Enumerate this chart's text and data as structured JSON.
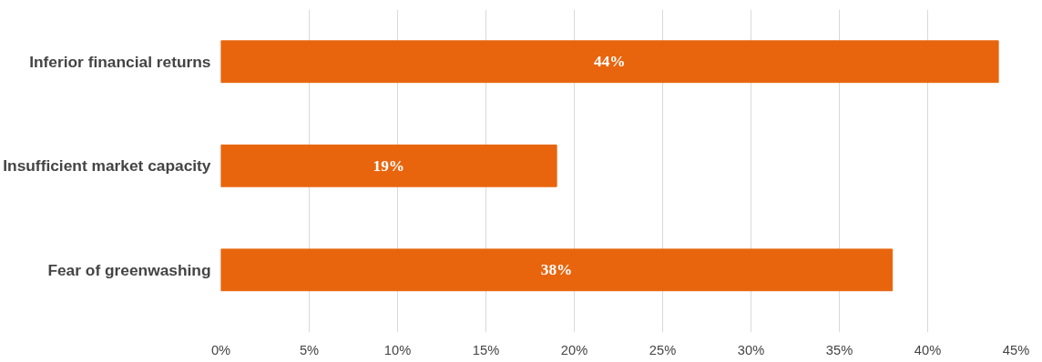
{
  "chart_data": {
    "type": "bar",
    "orientation": "horizontal",
    "categories": [
      "Inferior financial returns",
      "Insufficient market capacity",
      "Fear of greenwashing"
    ],
    "values": [
      44,
      19,
      38
    ],
    "color": "#e8650e",
    "value_labels": [
      "44%",
      "19%",
      "38%"
    ],
    "xlim": [
      0,
      45
    ],
    "xticks": [
      {
        "value": 0,
        "label": "0%"
      },
      {
        "value": 5,
        "label": "5%"
      },
      {
        "value": 10,
        "label": "10%"
      },
      {
        "value": 15,
        "label": "15%"
      },
      {
        "value": 20,
        "label": "20%"
      },
      {
        "value": 25,
        "label": "25%"
      },
      {
        "value": 30,
        "label": "30%"
      },
      {
        "value": 35,
        "label": "35%"
      },
      {
        "value": 40,
        "label": "40%"
      },
      {
        "value": 45,
        "label": "45%"
      }
    ],
    "grid": "x"
  }
}
